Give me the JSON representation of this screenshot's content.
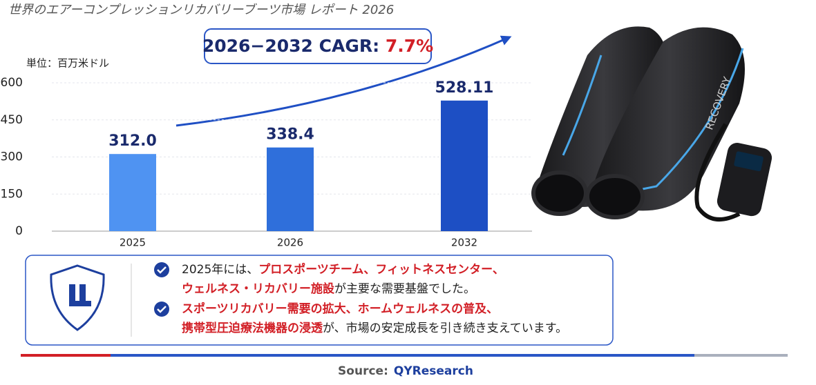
{
  "chart_data": {
    "type": "bar",
    "title": "世界のエアーコンプレッションリカバリーブーツ市場 レポート 2026",
    "unit_label": "単位：百万米ドル",
    "categories": [
      "2025",
      "2026",
      "2032"
    ],
    "values": [
      312.0,
      338.4,
      528.11
    ],
    "value_labels": [
      "312.0",
      "338.4",
      "528.11"
    ],
    "colors": [
      "#4f93f2",
      "#2f6fdb",
      "#1d4fc4"
    ],
    "ylim": [
      0,
      600
    ],
    "yticks": [
      0,
      150,
      300,
      450,
      600
    ],
    "grid": true,
    "cagr_label": "2026−2032 CAGR: ",
    "cagr_value": "7.7%"
  },
  "product_text": "RECOVERY",
  "notes": [
    {
      "lines": [
        [
          {
            "text": "2025年には、",
            "highlight": false
          },
          {
            "text": "プロスポーツチーム、フィットネスセンター、",
            "highlight": true
          }
        ],
        [
          {
            "text": "ウェルネス・リカバリー施設",
            "highlight": true
          },
          {
            "text": "が主要な需要基盤でした。",
            "highlight": false
          }
        ]
      ]
    },
    {
      "lines": [
        [
          {
            "text": "スポーツリカバリー需要の拡大、ホームウェルネスの普及、",
            "highlight": true
          }
        ],
        [
          {
            "text": "携帯型圧迫療法機器の浸透",
            "highlight": true
          },
          {
            "text": "が、市場の安定成長を引き続き支えています。",
            "highlight": false
          }
        ]
      ]
    }
  ],
  "source": {
    "label": "Source:",
    "name": "QYResearch"
  }
}
